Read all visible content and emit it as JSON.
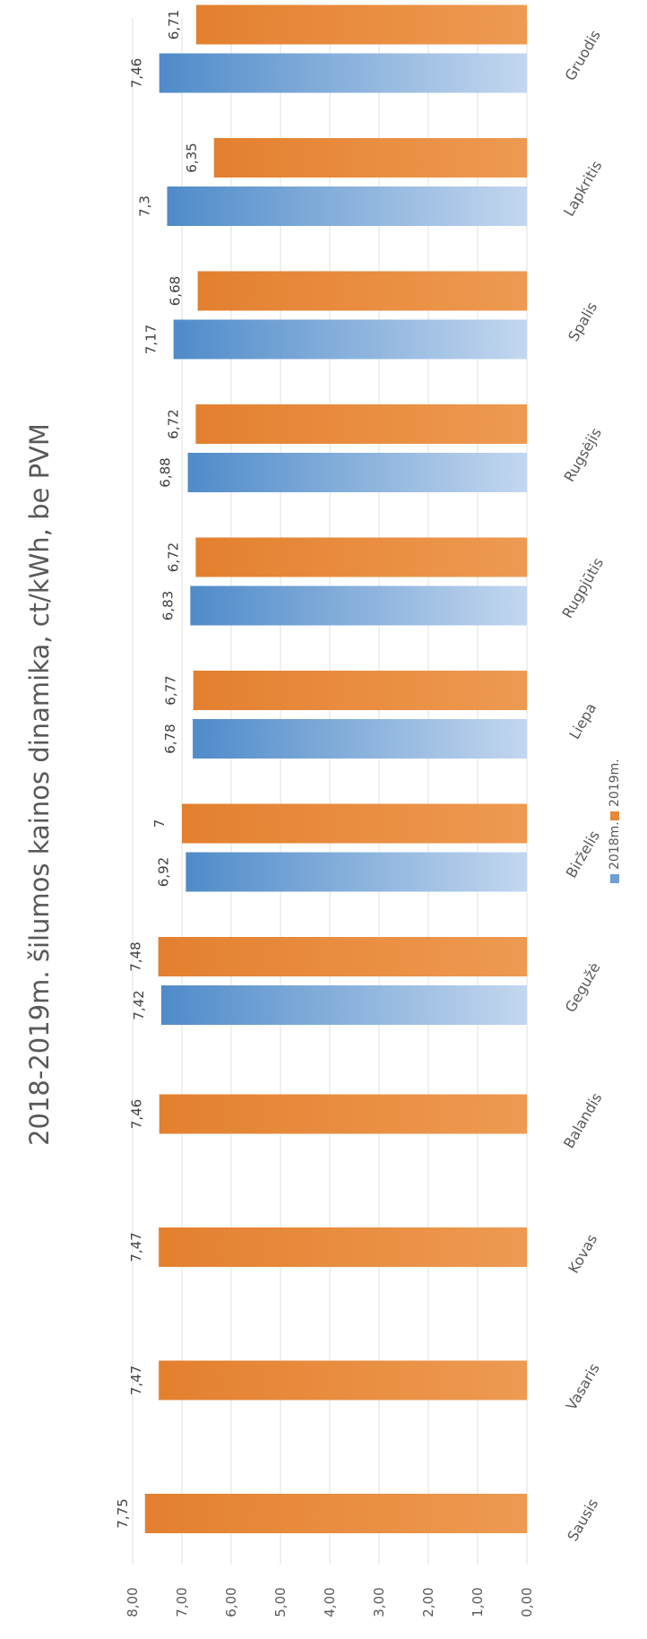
{
  "chart_data": {
    "type": "bar",
    "title": "2018-2019m. šilumos kainos dinamika, ct/kWh, be PVM",
    "categories": [
      "Sausis",
      "Vasaris",
      "Kovas",
      "Balandis",
      "Gegužė",
      "Birželis",
      "Liepa",
      "Rugpjūtis",
      "Rugsėjis",
      "Spalis",
      "Lapkritis",
      "Gruodis"
    ],
    "ylim": [
      0,
      8
    ],
    "yticks": [
      "0,00",
      "1,00",
      "2,00",
      "3,00",
      "4,00",
      "5,00",
      "6,00",
      "7,00",
      "8,00"
    ],
    "grid": true,
    "legend_position": "bottom",
    "series": [
      {
        "name": "2018m.",
        "color": "#6e9fd2",
        "values": [
          null,
          null,
          null,
          null,
          7.42,
          6.92,
          6.78,
          6.83,
          6.88,
          7.17,
          7.3,
          7.46
        ],
        "labels": [
          null,
          null,
          null,
          null,
          "7,42",
          "6,92",
          "6,78",
          "6,83",
          "6,88",
          "7,17",
          "7,3",
          "7,46"
        ]
      },
      {
        "name": "2019m.",
        "color": "#e8893a",
        "values": [
          7.75,
          7.47,
          7.47,
          7.46,
          7.48,
          7.0,
          6.77,
          6.72,
          6.72,
          6.68,
          6.35,
          6.71
        ],
        "labels": [
          "7,75",
          "7,47",
          "7,47",
          "7,46",
          "7,48",
          "7",
          "6,77",
          "6,72",
          "6,72",
          "6,68",
          "6,35",
          "6,71"
        ]
      }
    ]
  }
}
